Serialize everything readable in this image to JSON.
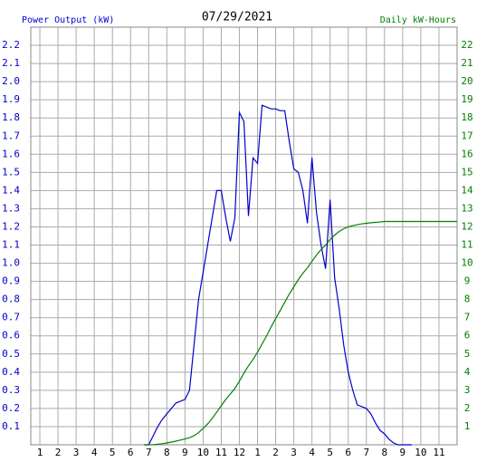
{
  "chart_data": {
    "type": "line",
    "title": "07/29/2021",
    "y_label": "Power Output (kW)",
    "y2_label": "Daily kW-Hours",
    "x": [
      6.75,
      7,
      7.25,
      7.5,
      7.75,
      8,
      8.25,
      8.5,
      8.75,
      9,
      9.25,
      9.5,
      9.75,
      10,
      10.25,
      10.5,
      10.75,
      11,
      11.25,
      11.5,
      11.75,
      12,
      12.25,
      12.5,
      12.75,
      13,
      13.25,
      13.5,
      13.75,
      14,
      14.25,
      14.5,
      14.75,
      15,
      15.25,
      15.5,
      15.75,
      16,
      16.25,
      16.5,
      16.75,
      17,
      17.25,
      17.5,
      17.75,
      18,
      18.25,
      18.5,
      18.75,
      19,
      19.25,
      19.5,
      19.75,
      20,
      20.25,
      20.5,
      20.75,
      21,
      21.25,
      21.5,
      21.75,
      22,
      22.25,
      22.5,
      22.75,
      23,
      23.25,
      23.5,
      23.75,
      24
    ],
    "series": [
      {
        "name": "Power Output (kW)",
        "color": "#0000cc",
        "values": [
          0,
          0,
          0.05,
          0.1,
          0.14,
          0.17,
          0.2,
          0.23,
          0.24,
          0.25,
          0.3,
          0.55,
          0.8,
          0.95,
          1.1,
          1.25,
          1.4,
          1.4,
          1.25,
          1.12,
          1.25,
          1.83,
          1.78,
          1.26,
          1.58,
          1.55,
          1.87,
          1.86,
          1.85,
          1.85,
          1.84,
          1.84,
          1.67,
          1.52,
          1.5,
          1.4,
          1.22,
          1.58,
          1.28,
          1.1,
          0.97,
          1.35,
          0.92,
          0.75,
          0.55,
          0.4,
          0.3,
          0.22,
          0.21,
          0.2,
          0.17,
          0.12,
          0.08,
          0.06,
          0.03,
          0.01,
          0,
          0,
          0,
          0,
          null,
          null,
          null,
          null,
          null,
          null,
          null,
          null,
          null,
          null
        ]
      },
      {
        "name": "Daily kW-Hours",
        "color": "#008000",
        "axis": "y2",
        "values": [
          0,
          0,
          0.01,
          0.03,
          0.06,
          0.1,
          0.15,
          0.2,
          0.26,
          0.32,
          0.39,
          0.5,
          0.67,
          0.9,
          1.15,
          1.45,
          1.8,
          2.15,
          2.5,
          2.8,
          3.1,
          3.5,
          3.95,
          4.35,
          4.7,
          5.1,
          5.55,
          6,
          6.5,
          6.95,
          7.4,
          7.85,
          8.3,
          8.7,
          9.1,
          9.45,
          9.75,
          10.1,
          10.45,
          10.75,
          11,
          11.3,
          11.55,
          11.75,
          11.9,
          12,
          12.07,
          12.12,
          12.17,
          12.2,
          12.23,
          12.25,
          12.27,
          12.3,
          12.3,
          12.3,
          12.3,
          12.3,
          12.3,
          12.3,
          12.3,
          12.3,
          12.3,
          12.3,
          12.3,
          12.3,
          12.3,
          12.3,
          12.3,
          12.3
        ]
      }
    ],
    "xlim": [
      0.5,
      24
    ],
    "xticks": [
      1,
      2,
      3,
      4,
      5,
      6,
      7,
      8,
      9,
      10,
      11,
      12,
      {
        "value": 13,
        "label": "1"
      },
      {
        "value": 14,
        "label": "2"
      },
      {
        "value": 15,
        "label": "3"
      },
      {
        "value": 16,
        "label": "4"
      },
      {
        "value": 17,
        "label": "5"
      },
      {
        "value": 18,
        "label": "6"
      },
      {
        "value": 19,
        "label": "7"
      },
      {
        "value": 20,
        "label": "8"
      },
      {
        "value": 21,
        "label": "9"
      },
      {
        "value": 22,
        "label": "10"
      },
      {
        "value": 23,
        "label": "11"
      }
    ],
    "ylim": [
      0,
      2.3
    ],
    "yticks": [
      0.1,
      0.2,
      0.3,
      0.4,
      0.5,
      0.6,
      0.7,
      0.8,
      0.9,
      {
        "value": 1,
        "label": "1.0"
      },
      1.1,
      1.2,
      1.3,
      1.4,
      1.5,
      1.6,
      1.7,
      1.8,
      1.9,
      {
        "value": 2,
        "label": "2.0"
      },
      2.1,
      2.2
    ],
    "y2lim": [
      0,
      23
    ],
    "y2ticks": [
      1,
      2,
      3,
      4,
      5,
      6,
      7,
      8,
      9,
      10,
      11,
      12,
      13,
      14,
      15,
      16,
      17,
      18,
      19,
      20,
      21,
      22
    ],
    "grid": true
  }
}
